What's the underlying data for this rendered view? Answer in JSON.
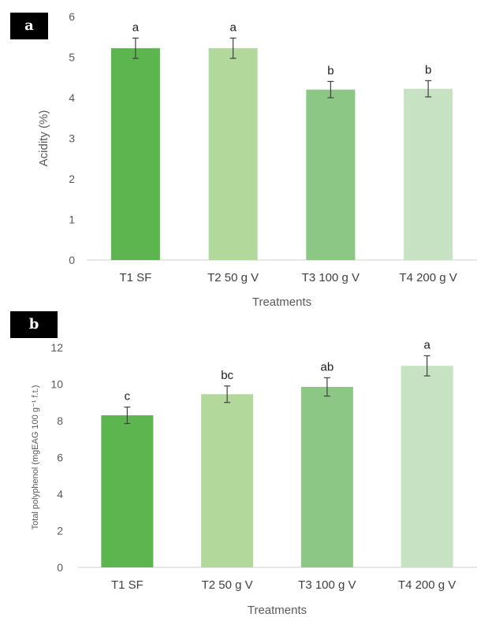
{
  "chart_data": [
    {
      "panel_label": "a",
      "type": "bar",
      "categories": [
        "T1 SF",
        "T2 50 g V",
        "T3 100 g V",
        "T4 200 g V"
      ],
      "values": [
        5.22,
        5.22,
        4.2,
        4.22
      ],
      "errors": [
        0.25,
        0.25,
        0.2,
        0.2
      ],
      "significance": [
        "a",
        "a",
        "b",
        "b"
      ],
      "colors": [
        "#5cb54f",
        "#b3d89b",
        "#8dc785",
        "#c6e2c2"
      ],
      "ylim": [
        0,
        6
      ],
      "yticks": [
        0,
        1,
        2,
        3,
        4,
        5,
        6
      ],
      "ylabel": "Acidity (%)",
      "xlabel": "Treatments",
      "grid": false
    },
    {
      "panel_label": "b",
      "type": "bar",
      "categories": [
        "T1 SF",
        "T2 50 g V",
        "T3 100 g V",
        "T4 200 g V"
      ],
      "values": [
        8.3,
        9.45,
        9.85,
        11.0
      ],
      "errors": [
        0.45,
        0.45,
        0.5,
        0.55
      ],
      "significance": [
        "c",
        "bc",
        "ab",
        "a"
      ],
      "colors": [
        "#5cb54f",
        "#b3d89b",
        "#8dc785",
        "#c6e2c2"
      ],
      "ylim": [
        0,
        12
      ],
      "yticks": [
        0,
        2,
        4,
        6,
        8,
        10,
        12
      ],
      "ylabel": "Total polyphenol (mgEAG 100 g⁻¹ f.t.)",
      "xlabel": "Treatments",
      "grid": false
    }
  ]
}
